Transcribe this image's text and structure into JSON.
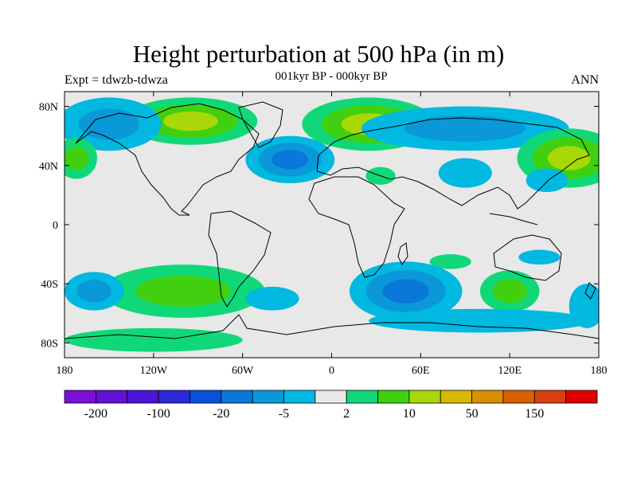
{
  "title": "Height perturbation at 500 hPa (in m)",
  "left_label": "Expt = tdwzb-tdwza",
  "center_label": "001kyr BP - 000kyr BP",
  "right_label": "ANN",
  "lat_ticks": [
    {
      "value": 80,
      "label": "80N"
    },
    {
      "value": 40,
      "label": "40N"
    },
    {
      "value": 0,
      "label": "0"
    },
    {
      "value": -40,
      "label": "40S"
    },
    {
      "value": -80,
      "label": "80S"
    }
  ],
  "lon_ticks": [
    {
      "value": -180,
      "label": "180"
    },
    {
      "value": -120,
      "label": "120W"
    },
    {
      "value": -60,
      "label": "60W"
    },
    {
      "value": 0,
      "label": "0"
    },
    {
      "value": 60,
      "label": "60E"
    },
    {
      "value": 120,
      "label": "120E"
    },
    {
      "value": 180,
      "label": "180"
    }
  ],
  "colorbar": {
    "colors": [
      "#7a0fd8",
      "#6510d8",
      "#4a15d8",
      "#2a2ad8",
      "#0a50d8",
      "#0a78d8",
      "#0a98d8",
      "#00b8e0",
      "#e8e8e8",
      "#10d878",
      "#40d010",
      "#a8d808",
      "#d8b800",
      "#d89000",
      "#d86000",
      "#d84010",
      "#e00000"
    ],
    "labels": [
      {
        "boundary": 1,
        "text": "-200"
      },
      {
        "boundary": 3,
        "text": "-100"
      },
      {
        "boundary": 5,
        "text": "-20"
      },
      {
        "boundary": 7,
        "text": "-5"
      },
      {
        "boundary": 9,
        "text": "2"
      },
      {
        "boundary": 11,
        "text": "10"
      },
      {
        "boundary": 13,
        "text": "50"
      },
      {
        "boundary": 15,
        "text": "150"
      }
    ]
  },
  "field_colors": {
    "background": "#e8e8e8",
    "pos_light": "#10d878",
    "pos_mid": "#40d010",
    "pos_high": "#a8d808",
    "neg_light": "#00b8e0",
    "neg_mid": "#0a98d8",
    "neg_deep": "#0a78d8"
  },
  "anomalies": [
    {
      "lon": -95,
      "lat": 70,
      "rlon": 45,
      "rlat": 16,
      "levels": [
        "pos_light",
        "pos_mid",
        "pos_high"
      ]
    },
    {
      "lon": 25,
      "lat": 68,
      "rlon": 45,
      "rlat": 18,
      "levels": [
        "pos_light",
        "pos_mid",
        "pos_high"
      ]
    },
    {
      "lon": -28,
      "lat": 44,
      "rlon": 30,
      "rlat": 16,
      "levels": [
        "neg_light",
        "neg_mid",
        "neg_deep"
      ]
    },
    {
      "lon": -150,
      "lat": 68,
      "rlon": 35,
      "rlat": 18,
      "levels": [
        "neg_light",
        "neg_mid"
      ]
    },
    {
      "lon": 90,
      "lat": 65,
      "rlon": 70,
      "rlat": 15,
      "levels": [
        "neg_light",
        "neg_mid"
      ]
    },
    {
      "lon": 160,
      "lat": 45,
      "rlon": 35,
      "rlat": 20,
      "levels": [
        "pos_light",
        "pos_mid",
        "pos_high"
      ]
    },
    {
      "lon": -172,
      "lat": 45,
      "rlon": 14,
      "rlat": 14,
      "levels": [
        "pos_light",
        "pos_mid"
      ]
    },
    {
      "lon": 33,
      "lat": 33,
      "rlon": 10,
      "rlat": 6,
      "levels": [
        "pos_light"
      ]
    },
    {
      "lon": 90,
      "lat": 35,
      "rlon": 18,
      "rlat": 10,
      "levels": [
        "neg_light"
      ]
    },
    {
      "lon": 145,
      "lat": 30,
      "rlon": 14,
      "rlat": 8,
      "levels": [
        "neg_light"
      ]
    },
    {
      "lon": 80,
      "lat": -25,
      "rlon": 14,
      "rlat": 5,
      "levels": [
        "pos_light"
      ]
    },
    {
      "lon": 140,
      "lat": -22,
      "rlon": 14,
      "rlat": 5,
      "levels": [
        "neg_light"
      ]
    },
    {
      "lon": -100,
      "lat": -45,
      "rlon": 55,
      "rlat": 18,
      "levels": [
        "pos_light",
        "pos_mid"
      ]
    },
    {
      "lon": -160,
      "lat": -45,
      "rlon": 20,
      "rlat": 13,
      "levels": [
        "neg_light",
        "neg_mid"
      ]
    },
    {
      "lon": 50,
      "lat": -45,
      "rlon": 38,
      "rlat": 20,
      "levels": [
        "neg_light",
        "neg_mid",
        "neg_deep"
      ]
    },
    {
      "lon": 120,
      "lat": -45,
      "rlon": 20,
      "rlat": 14,
      "levels": [
        "pos_light",
        "pos_mid"
      ]
    },
    {
      "lon": -40,
      "lat": -50,
      "rlon": 18,
      "rlat": 8,
      "levels": [
        "neg_light"
      ]
    },
    {
      "lon": 100,
      "lat": -65,
      "rlon": 75,
      "rlat": 8,
      "levels": [
        "neg_light"
      ]
    },
    {
      "lon": -120,
      "lat": -78,
      "rlon": 60,
      "rlat": 8,
      "levels": [
        "pos_light"
      ]
    },
    {
      "lon": 172,
      "lat": -55,
      "rlon": 12,
      "rlat": 15,
      "levels": [
        "neg_light"
      ]
    }
  ]
}
